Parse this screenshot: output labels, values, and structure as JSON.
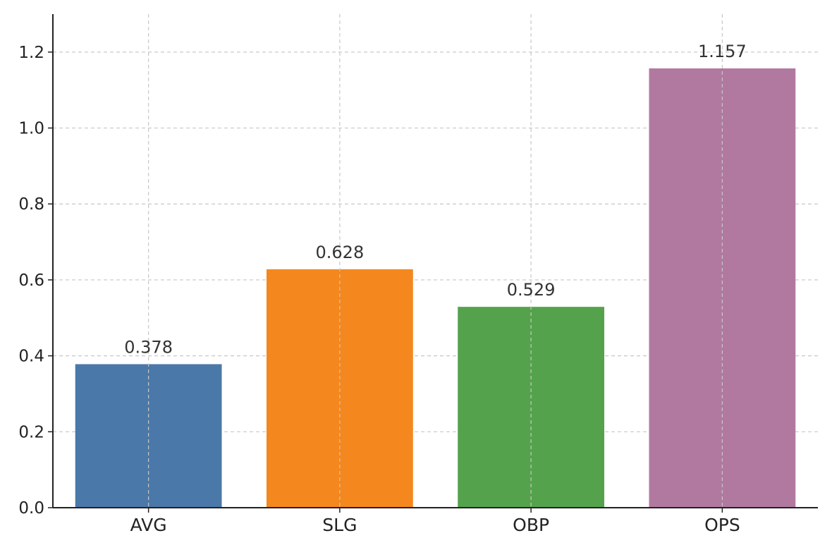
{
  "chart_data": {
    "type": "bar",
    "categories": [
      "AVG",
      "SLG",
      "OBP",
      "OPS"
    ],
    "values": [
      0.378,
      0.628,
      0.529,
      1.157
    ],
    "value_labels": [
      "0.378",
      "0.628",
      "0.529",
      "1.157"
    ],
    "colors": [
      "#4a78a8",
      "#f4871d",
      "#55a24c",
      "#b179a0"
    ],
    "title": "",
    "xlabel": "",
    "ylabel": "",
    "ylim": [
      0,
      1.3
    ],
    "yticks": [
      0.0,
      0.2,
      0.4,
      0.6,
      0.8,
      1.0,
      1.2
    ],
    "ytick_labels": [
      "0.0",
      "0.2",
      "0.4",
      "0.6",
      "0.8",
      "1.0",
      "1.2"
    ],
    "grid": true,
    "grid_style": "dashed"
  }
}
